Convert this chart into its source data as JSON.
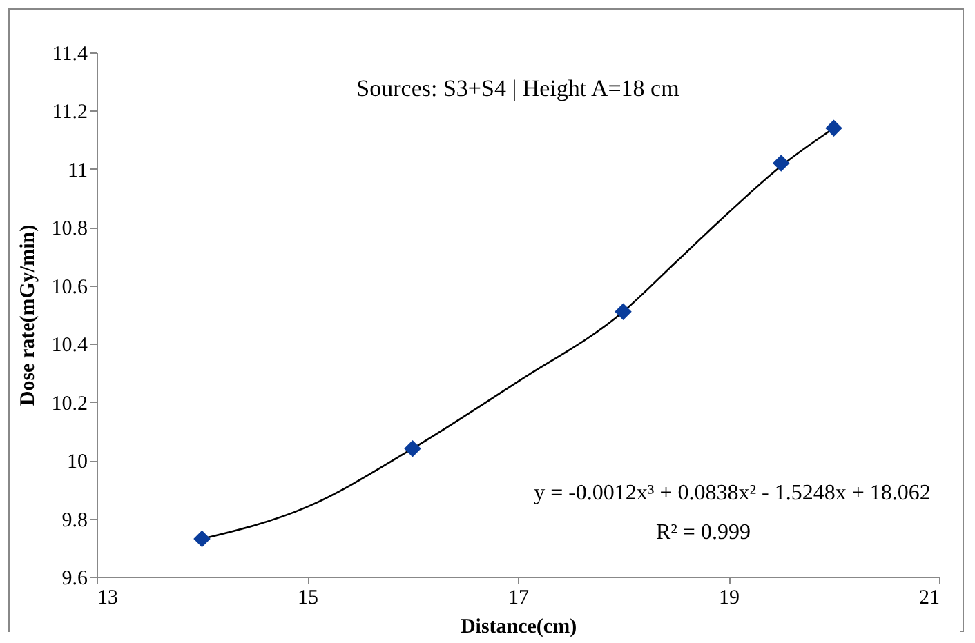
{
  "chart_data": {
    "type": "scatter",
    "xlabel": "Distance(cm)",
    "ylabel": "Dose rate(mGy/min)",
    "annotations": [
      "Sources: S3+S4 |   Height  A=18 cm",
      "y = -0.0012x³ + 0.0838x² - 1.5248x + 18.062",
      "R² = 0.999"
    ],
    "x": [
      14,
      16,
      18,
      19.5,
      20
    ],
    "series": [
      {
        "color": "#0a3d9c",
        "marker": "diamond",
        "values": [
          9.73,
          10.04,
          10.51,
          11.02,
          11.14
        ]
      },
      {
        "type": "line",
        "color": "#000000",
        "line_style": "solid",
        "x": [
          14,
          15,
          16,
          17,
          18,
          18.5,
          19,
          19.5,
          20
        ],
        "values": [
          9.73,
          9.84,
          10.04,
          10.27,
          10.51,
          10.68,
          10.85,
          11.01,
          11.14
        ]
      }
    ],
    "xlim": [
      13,
      21
    ],
    "xticks": [
      13,
      15,
      17,
      19,
      21
    ],
    "ylim": [
      9.6,
      11.4
    ],
    "yticks": [
      9.6,
      9.8,
      10,
      10.2,
      10.4,
      10.6,
      10.8,
      11,
      11.2,
      11.4
    ],
    "grid": false
  }
}
